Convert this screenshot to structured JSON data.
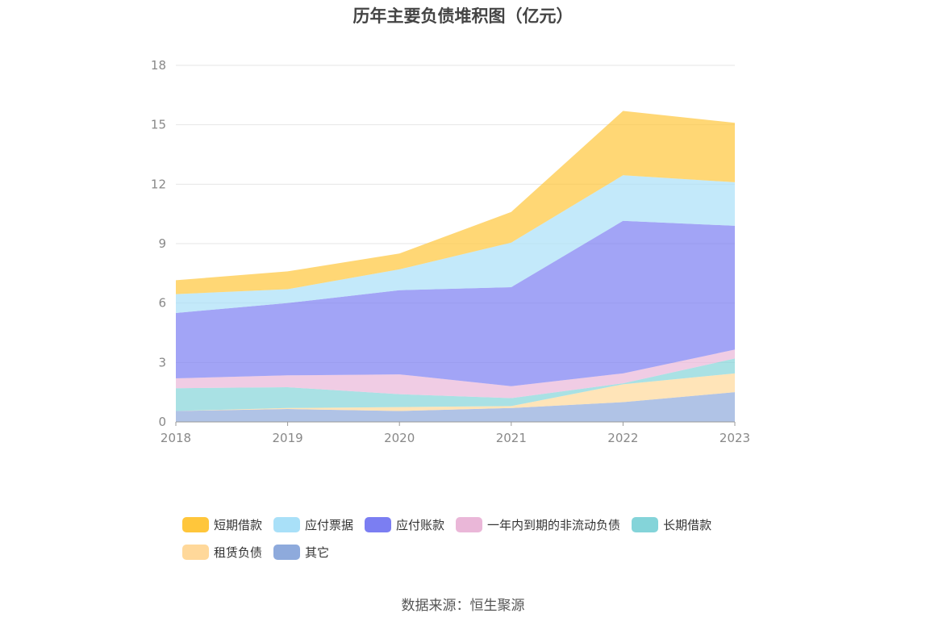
{
  "source_text": "数据来源：恒生聚源",
  "chart_data": {
    "type": "area",
    "stacked": true,
    "title": "历年主要负债堆积图（亿元）",
    "xlabel": "",
    "ylabel": "",
    "x": [
      "2018",
      "2019",
      "2020",
      "2021",
      "2022",
      "2023"
    ],
    "ylim": [
      0,
      18
    ],
    "yticks": [
      0,
      3,
      6,
      9,
      12,
      15,
      18
    ],
    "grid": true,
    "legend_position": "bottom",
    "series": [
      {
        "name": "其它",
        "color": "#8eaadc",
        "values": [
          0.55,
          0.65,
          0.55,
          0.7,
          1.0,
          1.5
        ]
      },
      {
        "name": "租赁负债",
        "color": "#ffd89a",
        "values": [
          0.0,
          0.05,
          0.2,
          0.1,
          0.9,
          0.95
        ]
      },
      {
        "name": "长期借款",
        "color": "#84d4d9",
        "values": [
          1.15,
          1.05,
          0.65,
          0.4,
          0.05,
          0.75
        ]
      },
      {
        "name": "一年内到期的非流动负债",
        "color": "#eab7d8",
        "values": [
          0.5,
          0.6,
          1.0,
          0.6,
          0.5,
          0.45
        ]
      },
      {
        "name": "应付账款",
        "color": "#7b7ef2",
        "values": [
          3.3,
          3.65,
          4.25,
          5.0,
          7.7,
          6.25
        ]
      },
      {
        "name": "应付票据",
        "color": "#a9e0f8",
        "values": [
          0.95,
          0.7,
          1.05,
          2.25,
          2.3,
          2.2
        ]
      },
      {
        "name": "短期借款",
        "color": "#ffc63b",
        "values": [
          0.7,
          0.9,
          0.8,
          1.55,
          3.25,
          3.0
        ]
      }
    ],
    "legend_order": [
      "短期借款",
      "应付票据",
      "应付账款",
      "一年内到期的非流动负债",
      "长期借款",
      "租赁负债",
      "其它"
    ]
  }
}
